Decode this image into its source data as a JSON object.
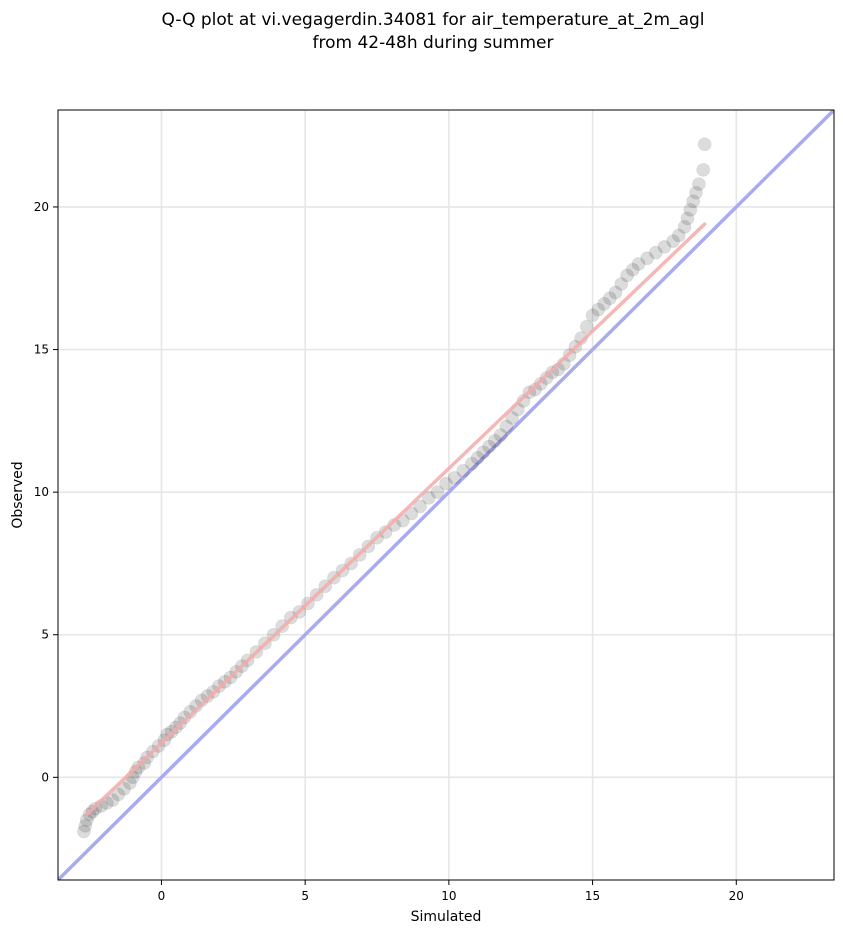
{
  "chart_data": {
    "type": "scatter",
    "title": "Q-Q plot at vi.vegagerdin.34081 for air_temperature_at_2m_agl",
    "subtitle": "from 42-48h during summer",
    "xlabel": "Simulated",
    "ylabel": "Observed",
    "xlim": [
      -3.6,
      23.4
    ],
    "ylim": [
      -3.6,
      23.4
    ],
    "xticks": [
      0,
      5,
      10,
      15,
      20
    ],
    "yticks": [
      0,
      5,
      10,
      15,
      20
    ],
    "grid": true,
    "reference_line": {
      "x": [
        -3.6,
        23.4
      ],
      "y": [
        -3.6,
        23.4
      ],
      "color": "#aaaaf0"
    },
    "fit_line": {
      "x": [
        -2.6,
        18.9
      ],
      "y": [
        -1.3,
        19.4
      ],
      "color": "#f4aaaa"
    },
    "series": [
      {
        "x": [
          -2.7,
          -2.65,
          -2.6,
          -2.5,
          -2.4,
          -2.3,
          -2.1,
          -1.9,
          -1.7,
          -1.5,
          -1.3,
          -1.1,
          -1.0,
          -0.9,
          -0.8,
          -0.6,
          -0.5,
          -0.3,
          -0.1,
          0.1,
          0.2,
          0.35,
          0.5,
          0.65,
          0.8,
          1.0,
          1.2,
          1.4,
          1.6,
          1.8,
          2.0,
          2.2,
          2.4,
          2.6,
          2.8,
          3.0,
          3.3,
          3.6,
          3.9,
          4.2,
          4.5,
          4.8,
          5.1,
          5.4,
          5.7,
          6.0,
          6.3,
          6.6,
          6.9,
          7.2,
          7.5,
          7.8,
          8.1,
          8.4,
          8.7,
          9.0,
          9.3,
          9.6,
          9.9,
          10.2,
          10.5,
          10.8,
          11.0,
          11.2,
          11.4,
          11.6,
          11.8,
          12.0,
          12.2,
          12.4,
          12.6,
          12.8,
          13.0,
          13.2,
          13.4,
          13.6,
          13.8,
          14.0,
          14.2,
          14.4,
          14.6,
          14.8,
          15.0,
          15.2,
          15.4,
          15.6,
          15.8,
          16.0,
          16.2,
          16.4,
          16.6,
          16.9,
          17.2,
          17.5,
          17.8,
          18.0,
          18.2,
          18.3,
          18.4,
          18.5,
          18.6,
          18.7,
          18.85,
          18.9
        ],
        "y": [
          -1.9,
          -1.7,
          -1.5,
          -1.3,
          -1.2,
          -1.1,
          -1.0,
          -0.9,
          -0.8,
          -0.6,
          -0.4,
          -0.2,
          0.0,
          0.2,
          0.35,
          0.5,
          0.7,
          0.9,
          1.1,
          1.3,
          1.5,
          1.6,
          1.75,
          1.9,
          2.1,
          2.3,
          2.5,
          2.7,
          2.85,
          3.0,
          3.2,
          3.35,
          3.5,
          3.7,
          3.9,
          4.1,
          4.4,
          4.7,
          5.0,
          5.3,
          5.6,
          5.8,
          6.1,
          6.4,
          6.7,
          7.0,
          7.25,
          7.5,
          7.8,
          8.1,
          8.4,
          8.6,
          8.85,
          9.0,
          9.25,
          9.5,
          9.8,
          10.0,
          10.3,
          10.5,
          10.75,
          11.0,
          11.2,
          11.4,
          11.6,
          11.8,
          12.0,
          12.3,
          12.6,
          12.9,
          13.2,
          13.5,
          13.6,
          13.8,
          14.0,
          14.2,
          14.3,
          14.5,
          14.8,
          15.1,
          15.4,
          15.8,
          16.2,
          16.4,
          16.6,
          16.8,
          17.0,
          17.3,
          17.6,
          17.8,
          18.0,
          18.2,
          18.4,
          18.6,
          18.8,
          19.0,
          19.3,
          19.6,
          19.9,
          20.2,
          20.5,
          20.8,
          21.3,
          22.2
        ]
      }
    ]
  }
}
